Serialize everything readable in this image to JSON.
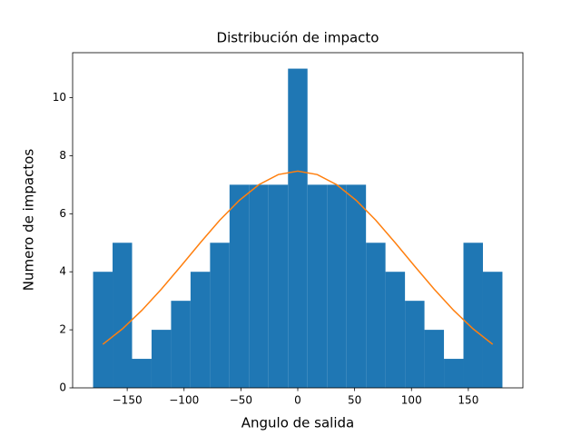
{
  "chart_data": {
    "type": "histogram",
    "title": "Distribución de impacto",
    "xlabel": "Angulo de salida",
    "ylabel": "Numero de impactos",
    "bins": [
      -180,
      -162.86,
      -145.71,
      -128.57,
      -111.43,
      -94.29,
      -77.14,
      -60,
      -42.86,
      -25.71,
      -8.57,
      8.57,
      25.71,
      42.86,
      60,
      77.14,
      94.29,
      111.43,
      128.57,
      145.71,
      162.86,
      180
    ],
    "values": [
      4,
      5,
      1,
      2,
      3,
      4,
      5,
      7,
      7,
      7,
      11,
      7,
      7,
      7,
      5,
      4,
      3,
      2,
      1,
      5,
      4
    ],
    "color": "#1f77b4",
    "line": {
      "type": "line",
      "color": "#ff7f0e",
      "x": [
        -171.43,
        -154.29,
        -137.14,
        -120,
        -102.86,
        -85.71,
        -68.57,
        -51.43,
        -34.29,
        -17.14,
        0,
        17.14,
        34.29,
        51.43,
        68.57,
        85.71,
        102.86,
        120,
        137.14,
        154.29,
        171.43
      ],
      "values": [
        1.5,
        2.03,
        2.67,
        3.4,
        4.19,
        5.0,
        5.78,
        6.46,
        7.0,
        7.35,
        7.47,
        7.35,
        7.0,
        6.46,
        5.78,
        5.0,
        4.19,
        3.4,
        2.67,
        2.03,
        1.5
      ]
    },
    "xlim": [
      -198,
      198
    ],
    "xticks": [
      {
        "value": -150,
        "label": "−150"
      },
      {
        "value": -100,
        "label": "−100"
      },
      {
        "value": -50,
        "label": "−50"
      },
      0,
      50,
      100,
      150
    ],
    "ylim": [
      0,
      11.55
    ],
    "yticks": [
      0,
      2,
      4,
      6,
      8,
      10
    ]
  }
}
